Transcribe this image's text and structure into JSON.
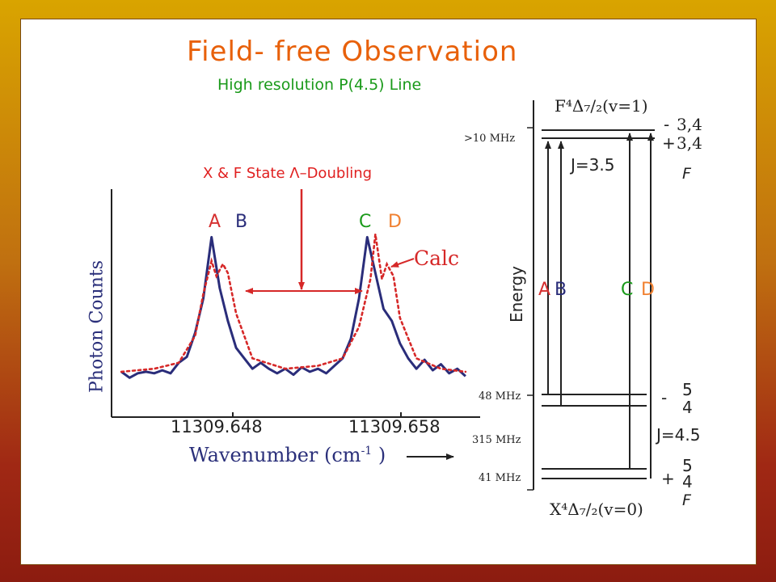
{
  "slide": {
    "title": "Field- free Observation",
    "subtitle": "High resolution P(4.5) Line",
    "doubling_label": "X & F State Λ–Doubling",
    "calc_label": "Calc"
  },
  "colors": {
    "title": "#e8600a",
    "subtitle": "#1a9a1a",
    "observed": "#2a2d7a",
    "calculated": "#d62828",
    "peak_A": "#d63030",
    "peak_B": "#2a2d7a",
    "peak_C": "#1a9a1a",
    "peak_D": "#f08030"
  },
  "chart_data": [
    {
      "type": "line",
      "ylabel": "Photon Counts",
      "xlabel": "Wavenumber (cm",
      "xlabel_sup": "-1",
      "xlabel_end": " )",
      "x_ticks": [
        "11309.648",
        "11309.658"
      ],
      "peak_labels": [
        "A",
        "B",
        "C",
        "D"
      ],
      "series": [
        {
          "name": "",
          "style": "solid",
          "x": [
            11309.642,
            11309.6425,
            11309.643,
            11309.6435,
            11309.644,
            11309.6445,
            11309.645,
            11309.6455,
            11309.646,
            11309.6465,
            11309.647,
            11309.6475,
            11309.648,
            11309.6485,
            11309.649,
            11309.6495,
            11309.65,
            11309.6505,
            11309.651,
            11309.6515,
            11309.652,
            11309.6525,
            11309.653,
            11309.6535,
            11309.654,
            11309.6545,
            11309.655,
            11309.6555,
            11309.656,
            11309.6565,
            11309.657,
            11309.6575,
            11309.658,
            11309.6585,
            11309.659,
            11309.6595,
            11309.66,
            11309.6605,
            11309.661,
            11309.6615,
            11309.662,
            11309.6625,
            11309.663
          ],
          "values": [
            6,
            2,
            5,
            6,
            5,
            7,
            5,
            12,
            16,
            32,
            55,
            96,
            62,
            40,
            22,
            15,
            8,
            12,
            8,
            5,
            8,
            4,
            9,
            6,
            8,
            5,
            10,
            15,
            28,
            55,
            96,
            72,
            48,
            40,
            25,
            15,
            8,
            14,
            7,
            11,
            5,
            8,
            3
          ]
        },
        {
          "name": "Calc",
          "style": "dotted",
          "x": [
            11309.642,
            11309.644,
            11309.6455,
            11309.6465,
            11309.647,
            11309.6475,
            11309.6478,
            11309.6482,
            11309.6485,
            11309.649,
            11309.65,
            11309.652,
            11309.654,
            11309.6555,
            11309.6565,
            11309.6572,
            11309.6575,
            11309.6579,
            11309.6582,
            11309.6586,
            11309.659,
            11309.66,
            11309.6615,
            11309.663
          ],
          "values": [
            6,
            8,
            12,
            30,
            58,
            80,
            70,
            78,
            72,
            45,
            15,
            8,
            10,
            15,
            36,
            68,
            98,
            68,
            78,
            70,
            42,
            15,
            8,
            6
          ]
        }
      ],
      "xlim": [
        11309.6415,
        11309.6633
      ],
      "ylim": [
        0,
        110
      ],
      "grid": false,
      "legend": "none"
    },
    {
      "type": "diagram",
      "axis_label": "Energy",
      "upper_state": "F⁴Δ₇/₂(v=1)",
      "lower_state": "X⁴Δ₇/₂(v=0)",
      "upper_J": "J=3.5",
      "lower_J": "J=4.5",
      "upper_F": [
        "3,4",
        "3,4"
      ],
      "upper_parity": [
        "-",
        "+"
      ],
      "lower_F_minus": [
        "5",
        "4"
      ],
      "lower_F_plus": [
        "5",
        "4"
      ],
      "lower_parity": [
        "-",
        "+"
      ],
      "F_label": "F",
      "splittings": [
        ">10 MHz",
        "48 MHz",
        "315 MHz",
        "41 MHz"
      ],
      "transition_labels": [
        "A",
        "B",
        "C",
        "D"
      ]
    }
  ]
}
